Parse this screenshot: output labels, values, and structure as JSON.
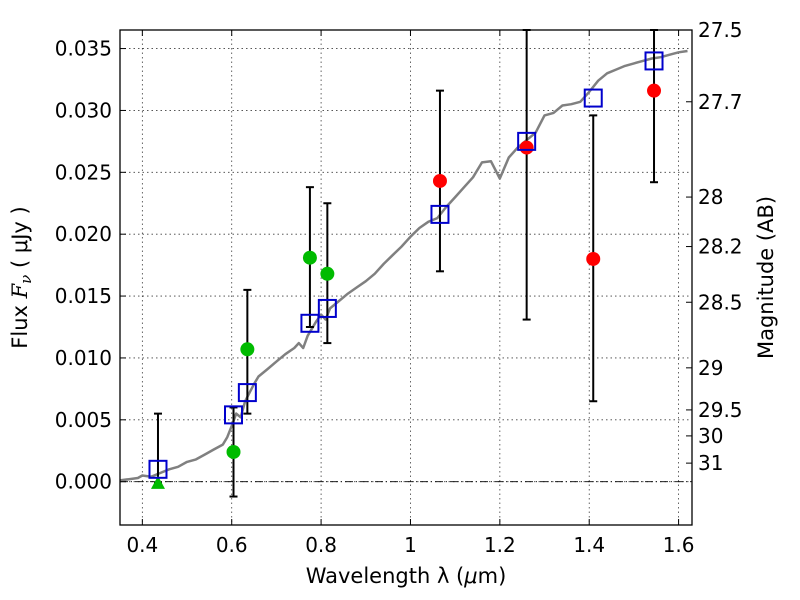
{
  "chart_data": {
    "type": "scatter",
    "xlabel_prefix": "Wavelength  λ (",
    "xlabel_unit": "μ",
    "xlabel_suffix": "m)",
    "ylabel_prefix": "Flux  ",
    "ylabel_symbol": "F",
    "ylabel_sub": "ν",
    "ylabel_suffix": "  ( μJy )",
    "y2label": "Magnitude (AB)",
    "xlim": [
      0.35,
      1.63
    ],
    "ylim": [
      -0.0035,
      0.0365
    ],
    "grid": true,
    "x_ticks": [
      {
        "value": 0.4,
        "label": "0.4"
      },
      {
        "value": 0.6,
        "label": "0.6"
      },
      {
        "value": 0.8,
        "label": "0.8"
      },
      {
        "value": 1.0,
        "label": "1"
      },
      {
        "value": 1.2,
        "label": "1.2"
      },
      {
        "value": 1.4,
        "label": "1.4"
      },
      {
        "value": 1.6,
        "label": "1.6"
      }
    ],
    "y_ticks": [
      {
        "value": 0.0,
        "label": "0.000"
      },
      {
        "value": 0.005,
        "label": "0.005"
      },
      {
        "value": 0.01,
        "label": "0.010"
      },
      {
        "value": 0.015,
        "label": "0.015"
      },
      {
        "value": 0.02,
        "label": "0.020"
      },
      {
        "value": 0.025,
        "label": "0.025"
      },
      {
        "value": 0.03,
        "label": "0.030"
      },
      {
        "value": 0.035,
        "label": "0.035"
      }
    ],
    "mag_ticks": [
      {
        "flux": 0.0365,
        "label": "27.5"
      },
      {
        "flux": 0.0307,
        "label": "27.7"
      },
      {
        "flux": 0.023,
        "label": "28"
      },
      {
        "flux": 0.019,
        "label": "28.2"
      },
      {
        "flux": 0.0145,
        "label": "28.5"
      },
      {
        "flux": 0.0092,
        "label": "29"
      },
      {
        "flux": 0.0058,
        "label": "29.5"
      },
      {
        "flux": 0.0037,
        "label": "30"
      },
      {
        "flux": 0.0015,
        "label": "31"
      }
    ],
    "model_spectrum": {
      "name": "model SED",
      "color": "#808080",
      "x": [
        0.35,
        0.37,
        0.39,
        0.4,
        0.42,
        0.44,
        0.46,
        0.48,
        0.5,
        0.52,
        0.54,
        0.56,
        0.58,
        0.59,
        0.6,
        0.61,
        0.62,
        0.63,
        0.64,
        0.65,
        0.66,
        0.68,
        0.7,
        0.72,
        0.74,
        0.75,
        0.76,
        0.77,
        0.78,
        0.79,
        0.8,
        0.81,
        0.82,
        0.84,
        0.86,
        0.88,
        0.9,
        0.92,
        0.94,
        0.96,
        0.98,
        1.0,
        1.02,
        1.04,
        1.06,
        1.08,
        1.1,
        1.12,
        1.14,
        1.16,
        1.18,
        1.2,
        1.22,
        1.24,
        1.26,
        1.28,
        1.3,
        1.32,
        1.34,
        1.36,
        1.38,
        1.4,
        1.42,
        1.44,
        1.46,
        1.48,
        1.5,
        1.52,
        1.54,
        1.56,
        1.58,
        1.6,
        1.62
      ],
      "y": [
        0.0001,
        0.0002,
        0.0003,
        0.0005,
        0.0004,
        0.0007,
        0.001,
        0.0012,
        0.0016,
        0.0018,
        0.0022,
        0.0026,
        0.003,
        0.0036,
        0.0045,
        0.0055,
        0.0052,
        0.0065,
        0.0072,
        0.0079,
        0.0085,
        0.0091,
        0.0097,
        0.0103,
        0.0108,
        0.0112,
        0.0108,
        0.0118,
        0.0124,
        0.013,
        0.0135,
        0.0131,
        0.014,
        0.0146,
        0.0152,
        0.0157,
        0.0162,
        0.0168,
        0.0176,
        0.0183,
        0.019,
        0.0198,
        0.0205,
        0.021,
        0.0213,
        0.0222,
        0.023,
        0.0238,
        0.0246,
        0.0258,
        0.0259,
        0.0245,
        0.0262,
        0.027,
        0.0276,
        0.0282,
        0.0296,
        0.0298,
        0.0304,
        0.0305,
        0.0307,
        0.0315,
        0.0324,
        0.033,
        0.0333,
        0.0336,
        0.0338,
        0.034,
        0.0342,
        0.0343,
        0.0345,
        0.0347,
        0.0348
      ]
    },
    "series": [
      {
        "name": "green points",
        "color": "#00bb00",
        "marker": "circle",
        "points": [
          {
            "x": 0.604,
            "y": 0.0024,
            "err_lo": -0.0012,
            "err_hi": 0.006
          },
          {
            "x": 0.635,
            "y": 0.0107,
            "err_lo": 0.0055,
            "err_hi": 0.0155
          },
          {
            "x": 0.775,
            "y": 0.0181,
            "err_lo": 0.0125,
            "err_hi": 0.0238
          },
          {
            "x": 0.814,
            "y": 0.0168,
            "err_lo": 0.0112,
            "err_hi": 0.0225
          }
        ]
      },
      {
        "name": "green upper limit",
        "color": "#00bb00",
        "marker": "triangle",
        "points": [
          {
            "x": 0.435,
            "y": -0.0001,
            "err_lo": -0.0001,
            "err_hi": 0.0055
          }
        ]
      },
      {
        "name": "red points",
        "color": "#ff0000",
        "marker": "circle",
        "points": [
          {
            "x": 1.066,
            "y": 0.0243,
            "err_lo": 0.017,
            "err_hi": 0.0316
          },
          {
            "x": 1.26,
            "y": 0.027,
            "err_lo": 0.0131,
            "err_hi": 0.0365
          },
          {
            "x": 1.409,
            "y": 0.018,
            "err_lo": 0.0065,
            "err_hi": 0.0296
          },
          {
            "x": 1.545,
            "y": 0.0316,
            "err_lo": 0.0242,
            "err_hi": 0.0365
          }
        ]
      },
      {
        "name": "model photometry",
        "color": "#0000cc",
        "marker": "open-square",
        "points": [
          {
            "x": 0.435,
            "y": 0.001
          },
          {
            "x": 0.604,
            "y": 0.0054
          },
          {
            "x": 0.635,
            "y": 0.0072
          },
          {
            "x": 0.775,
            "y": 0.0128
          },
          {
            "x": 0.814,
            "y": 0.014
          },
          {
            "x": 1.066,
            "y": 0.0216
          },
          {
            "x": 1.26,
            "y": 0.0275
          },
          {
            "x": 1.409,
            "y": 0.031
          },
          {
            "x": 1.545,
            "y": 0.034
          }
        ]
      }
    ]
  }
}
